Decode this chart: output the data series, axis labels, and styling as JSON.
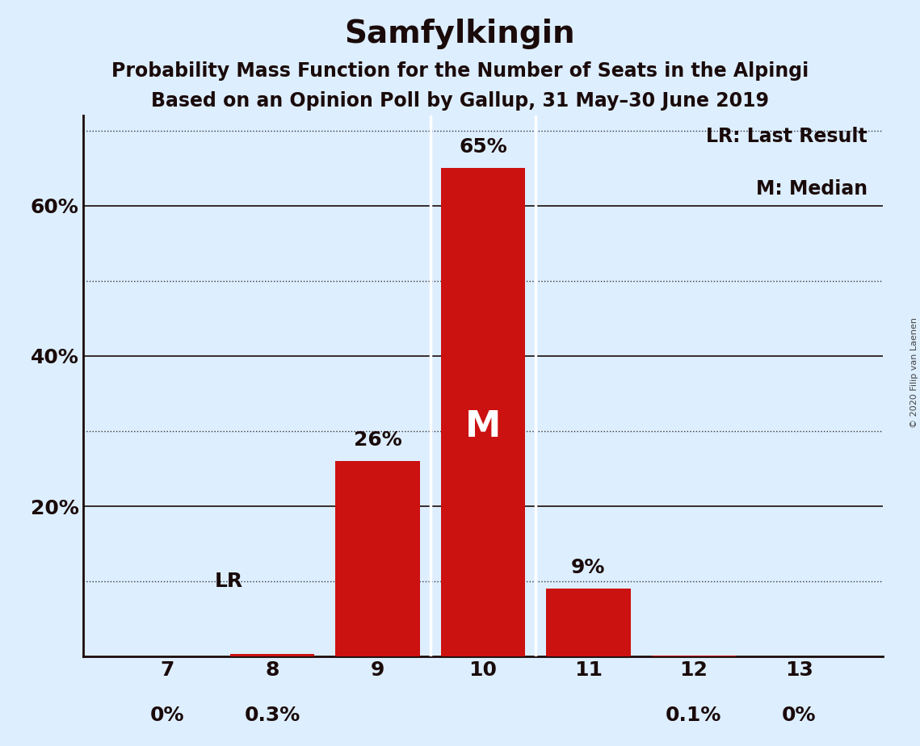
{
  "title": "Samfylkingin",
  "subtitle1": "Probability Mass Function for the Number of Seats in the Alpingi",
  "subtitle2": "Based on an Opinion Poll by Gallup, 31 May–30 June 2019",
  "copyright": "© 2020 Filip van Laenen",
  "seats": [
    7,
    8,
    9,
    10,
    11,
    12,
    13
  ],
  "probabilities": [
    0.0,
    0.3,
    26.0,
    65.0,
    9.0,
    0.1,
    0.0
  ],
  "bar_color": "#cc1111",
  "background_color": "#ddeeff",
  "median_seat": 10,
  "last_result_seat": 7,
  "annotations": [
    "0%",
    "0.3%",
    "26%",
    "65%",
    "9%",
    "0.1%",
    "0%"
  ],
  "median_label": "M",
  "lr_label": "LR",
  "legend_lr": "LR: Last Result",
  "legend_m": "M: Median",
  "ylim": [
    0,
    72
  ],
  "solid_grid": [
    20,
    40,
    60
  ],
  "dotted_grid": [
    10,
    30,
    50,
    70
  ],
  "ytick_positions": [
    20,
    40,
    60
  ],
  "ytick_labels": [
    "20%",
    "40%",
    "60%"
  ],
  "title_fontsize": 28,
  "subtitle_fontsize": 17,
  "axis_fontsize": 18,
  "annotation_fontsize": 18,
  "legend_fontsize": 17
}
